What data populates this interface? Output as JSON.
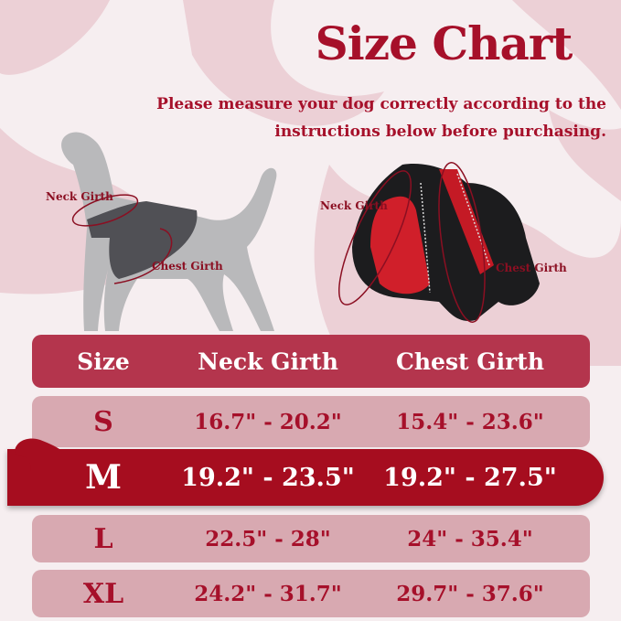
{
  "title": "Size Chart",
  "subtitle": [
    "Please measure your dog correctly according to the",
    "instructions below before purchasing."
  ],
  "dog_illustration": {
    "neck_label": "Neck Girth",
    "chest_label": "Chest Girth"
  },
  "harness_illustration": {
    "neck_label": "Neck Girth",
    "chest_label": "Chest Girth"
  },
  "colors": {
    "accent": "#a6102a",
    "highlight_row": "#a60d1f",
    "header_row": "#b4354d",
    "body_row": "#d8a9b1"
  },
  "table": {
    "headers": [
      "Size",
      "Neck Girth",
      "Chest Girth"
    ],
    "rows": [
      {
        "size": "S",
        "neck": "16.7\" - 20.2\"",
        "chest": "15.4\" - 23.6\""
      },
      {
        "size": "M",
        "neck": "19.2\" - 23.5\"",
        "chest": "19.2\" - 27.5\"",
        "highlighted": true
      },
      {
        "size": "L",
        "neck": "22.5\" - 28\"",
        "chest": "24\" - 35.4\""
      },
      {
        "size": "XL",
        "neck": "24.2\" - 31.7\"",
        "chest": "29.7\" - 37.6\""
      }
    ]
  }
}
